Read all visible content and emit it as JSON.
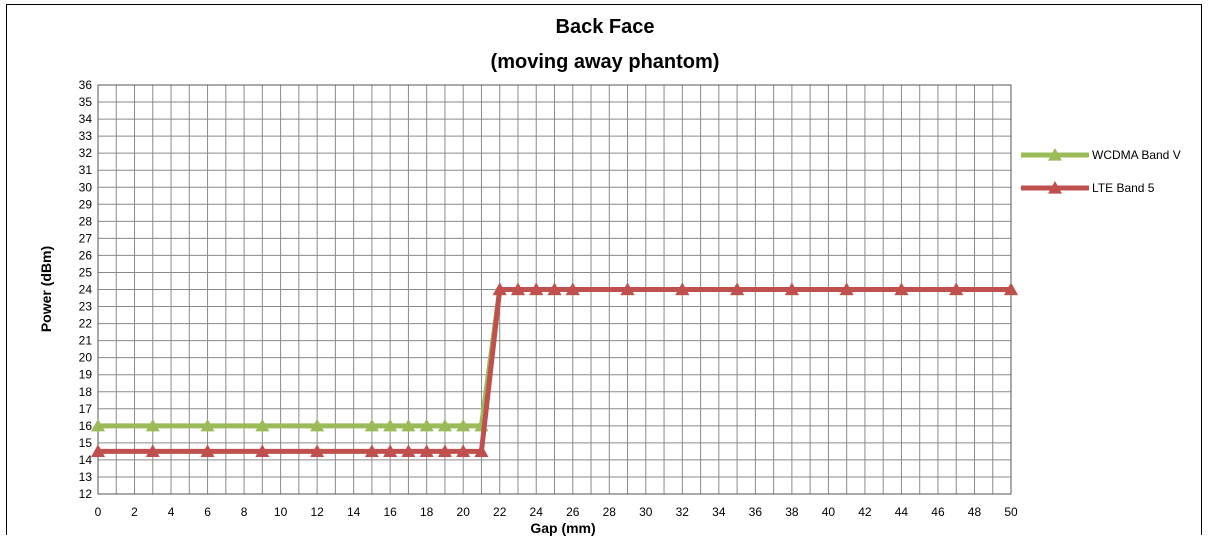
{
  "chart_data": {
    "type": "line",
    "title": "Back Face",
    "subtitle": "(moving away phantom)",
    "xlabel": "Gap (mm)",
    "ylabel": "Power (dBm)",
    "x_categories": [
      "0",
      "2",
      "4",
      "6",
      "8",
      "10",
      "12",
      "14",
      "16",
      "18",
      "20",
      "22",
      "24",
      "26",
      "28",
      "30",
      "32",
      "34",
      "36",
      "38",
      "40",
      "42",
      "44",
      "46",
      "48",
      "50"
    ],
    "ylim": [
      12,
      36
    ],
    "y_step": 1,
    "xlim": [
      0,
      50
    ],
    "grid": true,
    "legend_position": "right",
    "series": [
      {
        "name": "WCDMA Band V",
        "color": "#9BBB59",
        "marker": "triangle",
        "x": [
          0,
          3,
          6,
          9,
          12,
          15,
          16,
          17,
          18,
          19,
          20,
          21,
          22,
          23,
          24,
          25,
          26,
          29,
          32,
          35,
          38,
          41,
          44,
          47,
          50
        ],
        "y": [
          16,
          16,
          16,
          16,
          16,
          16,
          16,
          16,
          16,
          16,
          16,
          16,
          24,
          24,
          24,
          24,
          24,
          24,
          24,
          24,
          24,
          24,
          24,
          24,
          24
        ]
      },
      {
        "name": "LTE Band 5",
        "color": "#C0504D",
        "marker": "triangle",
        "x": [
          0,
          3,
          6,
          9,
          12,
          15,
          16,
          17,
          18,
          19,
          20,
          21,
          22,
          23,
          24,
          25,
          26,
          29,
          32,
          35,
          38,
          41,
          44,
          47,
          50
        ],
        "y": [
          14.5,
          14.5,
          14.5,
          14.5,
          14.5,
          14.5,
          14.5,
          14.5,
          14.5,
          14.5,
          14.5,
          14.5,
          24,
          24,
          24,
          24,
          24,
          24,
          24,
          24,
          24,
          24,
          24,
          24,
          24
        ]
      }
    ]
  }
}
